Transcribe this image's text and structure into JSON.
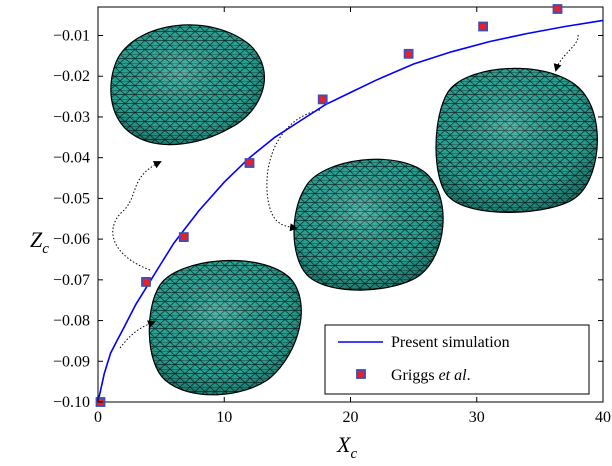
{
  "chart_data": {
    "type": "line",
    "xlabel": {
      "main": "X",
      "sub": "c"
    },
    "ylabel": {
      "main": "Z",
      "sub": "c"
    },
    "xlim": [
      0,
      40
    ],
    "ylim": [
      -0.1,
      -0.003
    ],
    "x_ticks": [
      0,
      10,
      20,
      30,
      40
    ],
    "x_tick_labels": [
      "0",
      "10",
      "20",
      "30",
      "40"
    ],
    "y_ticks": [
      -0.1,
      -0.09,
      -0.08,
      -0.07,
      -0.06,
      -0.05,
      -0.04,
      -0.03,
      -0.02,
      -0.01
    ],
    "y_tick_labels": [
      "−0.10",
      "−0.09",
      "−0.08",
      "−0.07",
      "−0.06",
      "−0.05",
      "−0.04",
      "−0.03",
      "−0.02",
      "−0.01"
    ],
    "grid": false,
    "legend_position": "bottom-right",
    "series": [
      {
        "name": "Present simulation",
        "kind": "line",
        "color": "#0000ff",
        "x": [
          0,
          0.5,
          1,
          1.5,
          2,
          3,
          4,
          5,
          6,
          7,
          8,
          10,
          12,
          14,
          16,
          18,
          20,
          22,
          25,
          28,
          31,
          34,
          37,
          40
        ],
        "y": [
          -0.1,
          -0.093,
          -0.088,
          -0.085,
          -0.082,
          -0.076,
          -0.071,
          -0.066,
          -0.061,
          -0.057,
          -0.053,
          -0.046,
          -0.04,
          -0.035,
          -0.031,
          -0.027,
          -0.024,
          -0.021,
          -0.017,
          -0.014,
          -0.0115,
          -0.0095,
          -0.0078,
          -0.0063
        ]
      },
      {
        "name_parts": [
          "Griggs ",
          "et al",
          "."
        ],
        "kind": "markers",
        "marker_fill": "#e8202a",
        "marker_edge": "#3b4fb8",
        "x": [
          0.2,
          3.8,
          6.8,
          12.0,
          17.8,
          24.6,
          30.5,
          36.4
        ],
        "y": [
          -0.1,
          -0.0705,
          -0.0595,
          -0.0413,
          -0.0257,
          -0.0145,
          -0.0078,
          -0.0035
        ]
      }
    ],
    "annotations": [
      {
        "label": "droplet-shape",
        "center_data": [
          4.8,
          -0.0198
        ],
        "points_to": [
          3.8,
          -0.0705
        ]
      },
      {
        "label": "droplet-shape",
        "center_data": [
          5.6,
          -0.0815
        ],
        "points_to": [
          1.2,
          -0.0838
        ]
      },
      {
        "label": "droplet-shape",
        "center_data": [
          21.2,
          -0.0555
        ],
        "points_to": [
          17.8,
          -0.0257
        ]
      },
      {
        "label": "droplet-shape",
        "center_data": [
          35.8,
          -0.0355
        ],
        "points_to": [
          36.4,
          -0.0035
        ]
      }
    ]
  }
}
